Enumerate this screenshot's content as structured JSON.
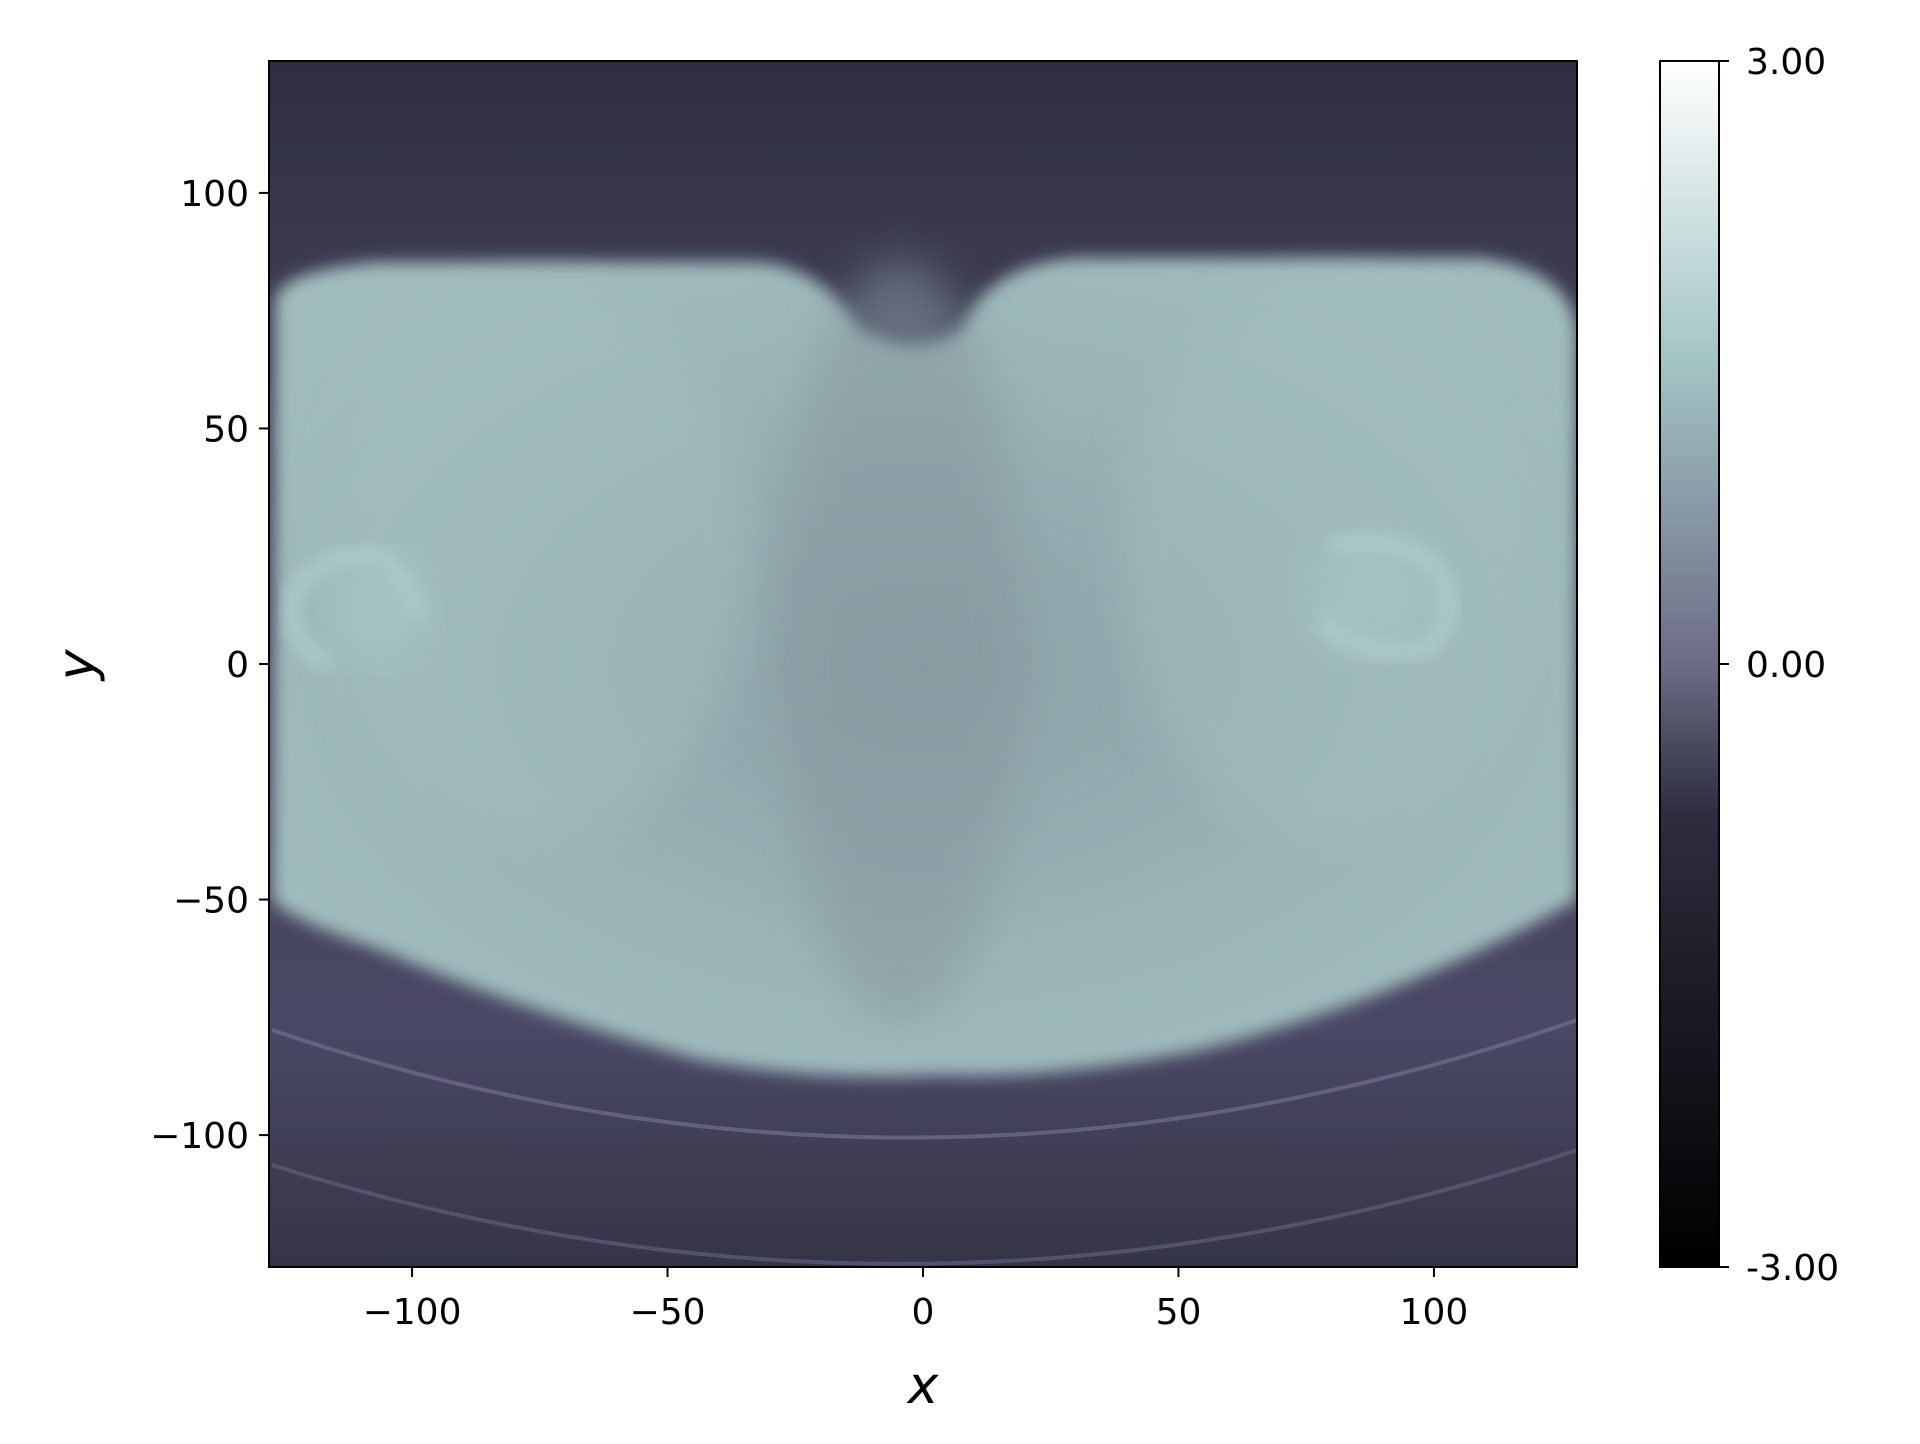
{
  "chart_data": {
    "type": "heatmap",
    "colormap": "bone",
    "xlabel": "x",
    "ylabel": "y",
    "xlim": [
      -128,
      128
    ],
    "ylim": [
      -128,
      128
    ],
    "x_ticks": [
      -100,
      -50,
      0,
      50,
      100
    ],
    "x_tick_labels": [
      "−100",
      "−50",
      "0",
      "50",
      "100"
    ],
    "y_ticks": [
      100,
      50,
      0,
      -50,
      -100
    ],
    "y_tick_labels": [
      "100",
      "50",
      "0",
      "−50",
      "−100"
    ],
    "colorbar": {
      "range": [
        -3.0,
        3.0
      ],
      "ticks": [
        3.0,
        0.0,
        -3.0
      ],
      "tick_labels": [
        "3.00",
        "0.00",
        "-3.00"
      ]
    },
    "colors": {
      "background": "#353447",
      "body": "#98b2b4",
      "bright_spot": "#a8ccc9",
      "outer_ring": "#4a4965"
    }
  }
}
